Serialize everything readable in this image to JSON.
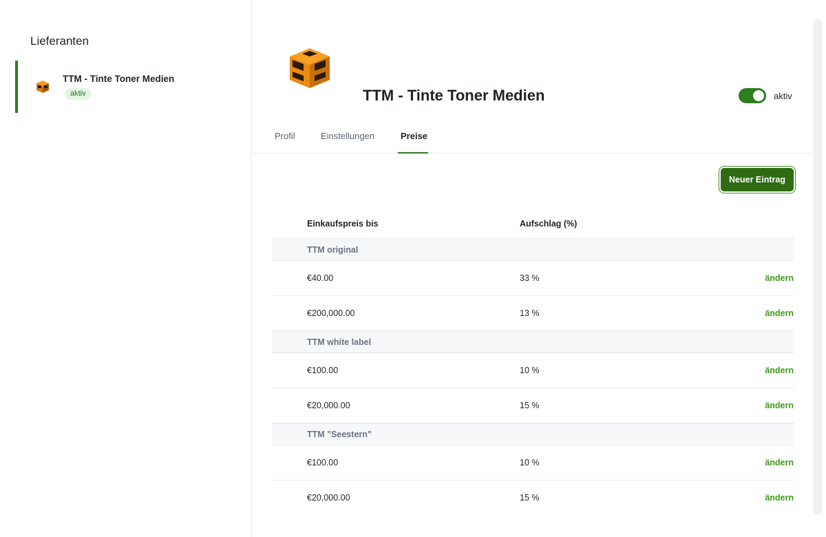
{
  "sidebar": {
    "title": "Lieferanten",
    "items": [
      {
        "name": "TTM - Tinte Toner Medien",
        "status": "aktiv"
      }
    ]
  },
  "header": {
    "title": "TTM - Tinte Toner Medien",
    "toggle_label": "aktiv",
    "toggle_on": true
  },
  "tabs": [
    {
      "label": "Profil"
    },
    {
      "label": "Einstellungen"
    },
    {
      "label": "Preise",
      "active": true
    }
  ],
  "toolbar": {
    "new_entry_label": "Neuer Eintrag"
  },
  "table": {
    "columns": [
      "Einkaufspreis bis",
      "Aufschlag (%)"
    ],
    "action_label": "ändern",
    "groups": [
      {
        "label": "TTM original",
        "rows": [
          {
            "price": "€40.00",
            "markup": "33 %"
          },
          {
            "price": "€200,000.00",
            "markup": "13 %"
          }
        ]
      },
      {
        "label": "TTM white label",
        "rows": [
          {
            "price": "€100.00",
            "markup": "10 %"
          },
          {
            "price": "€20,000.00",
            "markup": "15 %"
          }
        ]
      },
      {
        "label": "TTM \"Seestern\"",
        "rows": [
          {
            "price": "€100.00",
            "markup": "10 %"
          },
          {
            "price": "€20,000.00",
            "markup": "15 %"
          }
        ]
      }
    ]
  },
  "colors": {
    "accent": "#2e7d1e",
    "action": "#3f9a1a",
    "badge_bg": "#e3f6e3"
  },
  "icons": {
    "logo": "ttm-cube-logo-icon"
  }
}
